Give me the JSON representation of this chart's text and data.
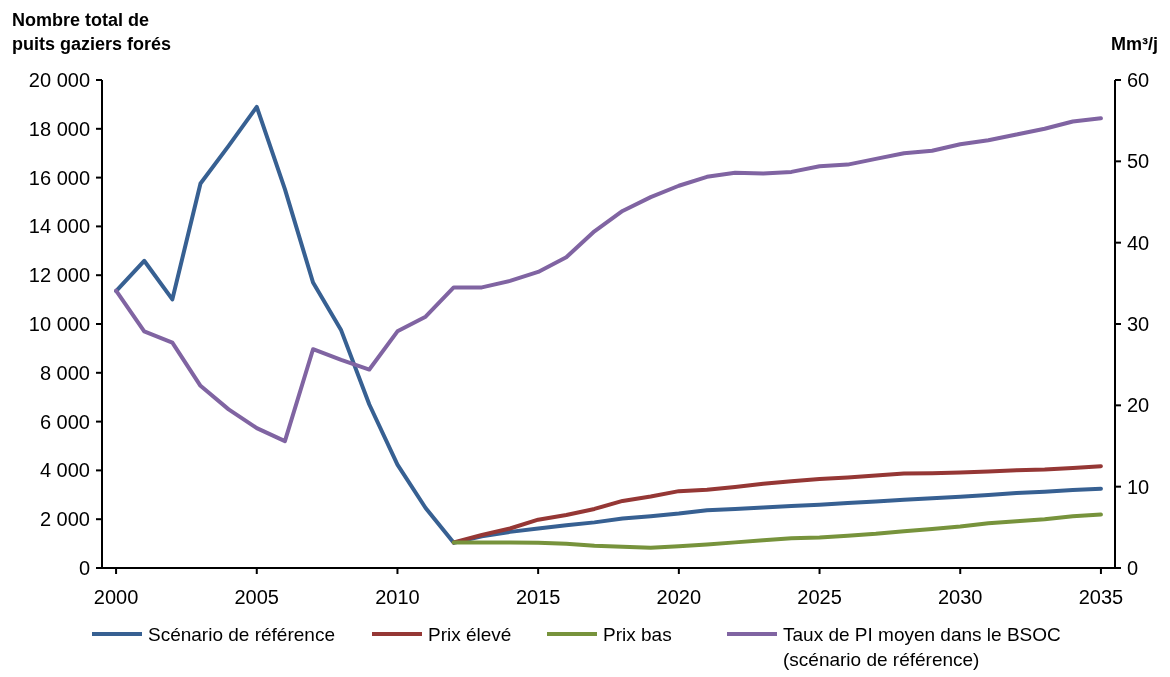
{
  "chart_data": {
    "type": "line",
    "ylabel": "Nombre total de puits gaziers forés",
    "y2label": "Mm³/j",
    "legend": "bottom",
    "line_style": "solid",
    "marker": "none",
    "grid": false,
    "xlim": [
      1999.5,
      2035.5
    ],
    "xticks": [
      2000,
      2005,
      2010,
      2015,
      2020,
      2025,
      2030,
      2035
    ],
    "ylim": [
      0,
      20000
    ],
    "yticks": [
      0,
      {
        "value": 2000,
        "label": "2 000"
      },
      {
        "value": 4000,
        "label": "4 000"
      },
      {
        "value": 6000,
        "label": "6 000"
      },
      {
        "value": 8000,
        "label": "8 000"
      },
      {
        "value": 10000,
        "label": "10 000"
      },
      {
        "value": 12000,
        "label": "12 000"
      },
      {
        "value": 14000,
        "label": "14 000"
      },
      {
        "value": 16000,
        "label": "16 000"
      },
      {
        "value": 18000,
        "label": "18 000"
      },
      {
        "value": 20000,
        "label": "20 000"
      }
    ],
    "y2lim": [
      0,
      60
    ],
    "y2ticks": [
      0,
      10,
      20,
      30,
      40,
      50,
      60
    ],
    "series": [
      {
        "name": "Scénario de référence",
        "color": "#376092",
        "x": [
          2000,
          2001,
          2002,
          2003,
          2004,
          2005,
          2006,
          2007,
          2008,
          2009,
          2010,
          2011,
          2012,
          2013,
          2014,
          2015,
          2016,
          2017,
          2018,
          2019,
          2020,
          2021,
          2022,
          2023,
          2024,
          2025,
          2026,
          2027,
          2028,
          2029,
          2030,
          2031,
          2032,
          2033,
          2034,
          2035
        ],
        "values": [
          11350,
          12590,
          11010,
          15760,
          17300,
          18900,
          15530,
          11700,
          9740,
          6700,
          4240,
          2460,
          1030,
          1300,
          1480,
          1620,
          1750,
          1870,
          2030,
          2120,
          2230,
          2370,
          2420,
          2480,
          2540,
          2590,
          2660,
          2730,
          2800,
          2860,
          2920,
          2990,
          3070,
          3130,
          3200,
          3250
        ]
      },
      {
        "name": "Prix élevé",
        "color": "#953735",
        "x": [
          2012,
          2013,
          2014,
          2015,
          2016,
          2017,
          2018,
          2019,
          2020,
          2021,
          2022,
          2023,
          2024,
          2025,
          2026,
          2027,
          2028,
          2029,
          2030,
          2031,
          2032,
          2033,
          2034,
          2035
        ],
        "values": [
          1050,
          1350,
          1620,
          1980,
          2170,
          2420,
          2750,
          2930,
          3150,
          3210,
          3320,
          3450,
          3560,
          3650,
          3710,
          3790,
          3870,
          3880,
          3910,
          3950,
          4010,
          4040,
          4100,
          4170
        ]
      },
      {
        "name": "Prix bas",
        "color": "#77933c",
        "x": [
          2012,
          2013,
          2014,
          2015,
          2016,
          2017,
          2018,
          2019,
          2020,
          2021,
          2022,
          2023,
          2024,
          2025,
          2026,
          2027,
          2028,
          2029,
          2030,
          2031,
          2032,
          2033,
          2034,
          2035
        ],
        "values": [
          1050,
          1050,
          1050,
          1030,
          990,
          910,
          870,
          830,
          890,
          960,
          1050,
          1140,
          1220,
          1250,
          1320,
          1400,
          1510,
          1600,
          1700,
          1830,
          1920,
          2000,
          2120,
          2190
        ]
      },
      {
        "name": "Taux de PI moyen dans le BSOC (scénario de référence)",
        "color": "#8064a2",
        "axis": "y2",
        "x": [
          2000,
          2001,
          2002,
          2003,
          2004,
          2005,
          2006,
          2007,
          2008,
          2009,
          2010,
          2011,
          2012,
          2013,
          2014,
          2015,
          2016,
          2017,
          2018,
          2019,
          2020,
          2021,
          2022,
          2023,
          2024,
          2025,
          2026,
          2027,
          2028,
          2029,
          2030,
          2031,
          2032,
          2033,
          2034,
          2035
        ],
        "values": [
          34.1,
          29.1,
          27.7,
          22.4,
          19.5,
          17.2,
          15.6,
          26.9,
          25.6,
          24.4,
          29.1,
          30.9,
          34.5,
          34.5,
          35.3,
          36.4,
          38.2,
          41.4,
          43.9,
          45.6,
          47.0,
          48.1,
          48.6,
          48.5,
          48.7,
          49.4,
          49.6,
          50.3,
          51.0,
          51.3,
          52.1,
          52.6,
          53.3,
          54.0,
          54.9,
          55.3
        ]
      }
    ]
  }
}
